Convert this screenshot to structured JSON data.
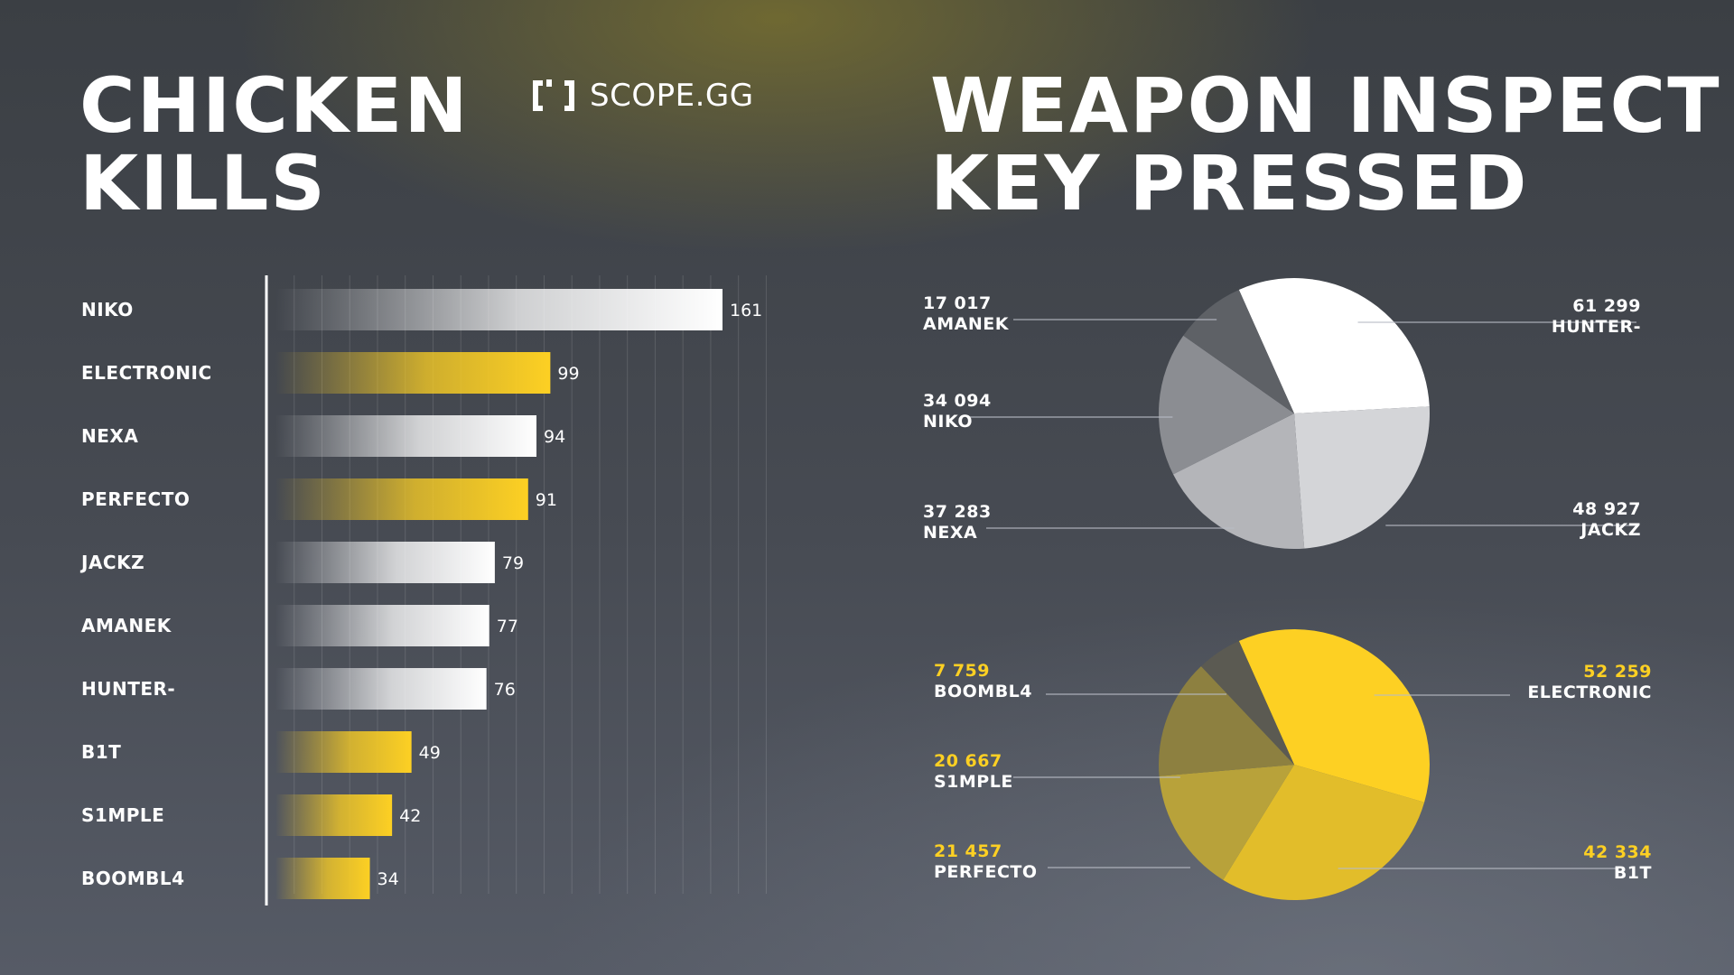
{
  "brand": {
    "logo_icon": "bracket-logo-icon",
    "name": "SCOPE.GG"
  },
  "colors": {
    "yellow": "#fdd023",
    "white": "#ffffff",
    "pie_top_slices": [
      "#ffffff",
      "#d4d5d8",
      "#b4b5b9",
      "#8b8d92",
      "#5e6166"
    ],
    "pie_bottom_slices": [
      "#fdd023",
      "#e2bd2a",
      "#b8a23a",
      "#8d8040",
      "#5b5a52"
    ]
  },
  "chart_data": [
    {
      "type": "bar",
      "orientation": "horizontal",
      "title": "CHICKEN\nKILLS",
      "categories": [
        "NIKO",
        "ELECTRONIC",
        "NEXA",
        "PERFECTO",
        "JACKZ",
        "AMANEK",
        "HUNTER-",
        "B1T",
        "S1MPLE",
        "BOOMBL4"
      ],
      "values": [
        161,
        99,
        94,
        91,
        79,
        77,
        76,
        49,
        42,
        34
      ],
      "bar_colors": [
        "white",
        "yellow",
        "white",
        "yellow",
        "white",
        "white",
        "white",
        "yellow",
        "yellow",
        "yellow"
      ],
      "grid": true,
      "xlim": [
        0,
        180
      ]
    },
    {
      "type": "pie",
      "title": "WEAPON INSPECT\nKEY PRESSED",
      "slices": [
        {
          "label": "HUNTER-",
          "value": 61299
        },
        {
          "label": "JACKZ",
          "value": 48927
        },
        {
          "label": "NEXA",
          "value": 37283
        },
        {
          "label": "NIKO",
          "value": 34094
        },
        {
          "label": "AMANEK",
          "value": 17017
        }
      ],
      "value_labels": [
        "61 299",
        "48 927",
        "37 283",
        "34 094",
        "17 017"
      ]
    },
    {
      "type": "pie",
      "title": "",
      "slices": [
        {
          "label": "ELECTRONIC",
          "value": 52259
        },
        {
          "label": "B1T",
          "value": 42334
        },
        {
          "label": "PERFECTO",
          "value": 21457
        },
        {
          "label": "S1MPLE",
          "value": 20667
        },
        {
          "label": "BOOMBL4",
          "value": 7759
        }
      ],
      "value_labels": [
        "52 259",
        "42 334",
        "21 457",
        "20 667",
        "7 759"
      ]
    }
  ]
}
